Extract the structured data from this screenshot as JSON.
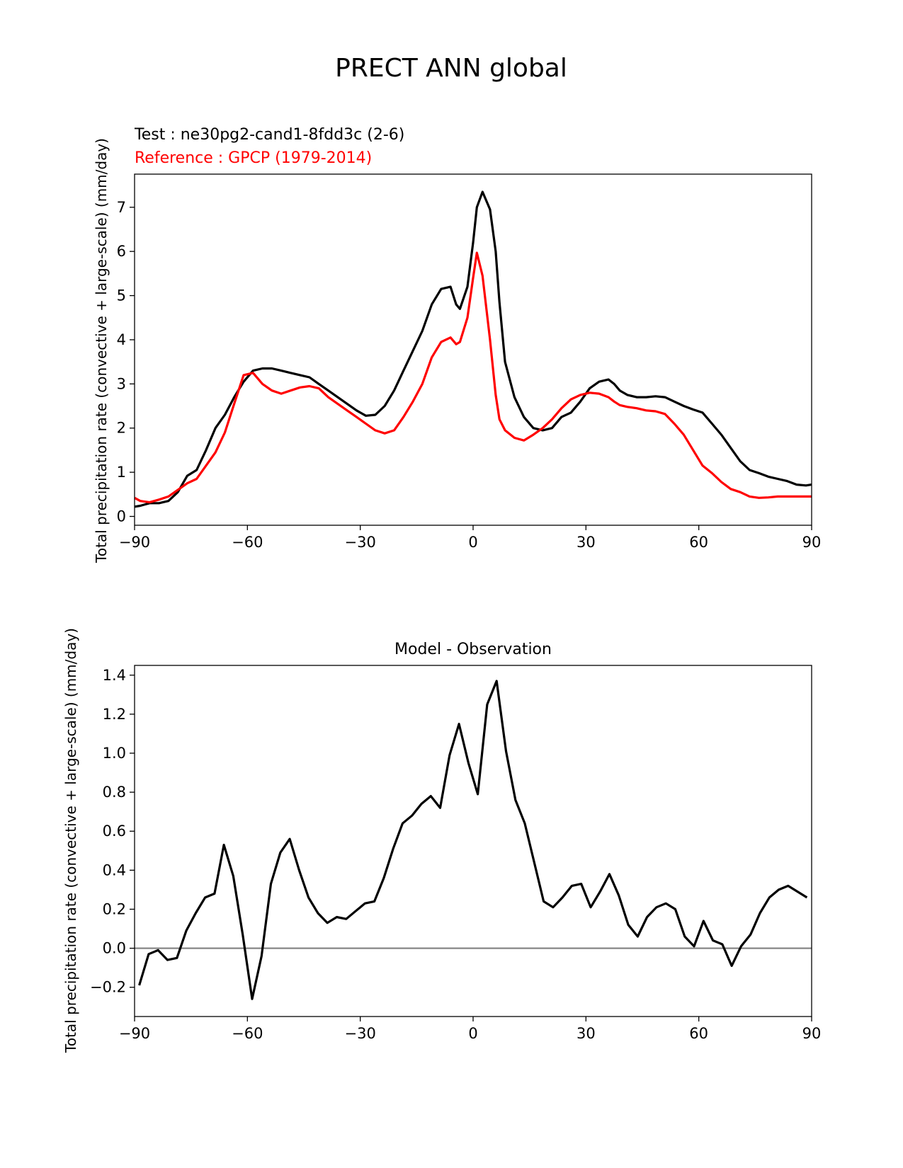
{
  "figure": {
    "title": "PRECT ANN global",
    "test_label": "Test : ne30pg2-cand1-8fdd3c (2-6)",
    "reference_label": "Reference : GPCP (1979-2014)"
  },
  "colors": {
    "test": "#000000",
    "reference": "#ff0000",
    "zero_line": "#808080",
    "axes": "#000000"
  },
  "chart_data": [
    {
      "type": "line",
      "ylabel": "Total precipitation rate (convective + large-scale) (mm/day)",
      "xlim": [
        -90,
        90
      ],
      "ylim": [
        -0.2,
        7.75
      ],
      "xticks": [
        -90,
        -60,
        -30,
        0,
        30,
        60,
        90
      ],
      "xtick_labels": [
        "−90",
        "−60",
        "−30",
        "0",
        "30",
        "60",
        "90"
      ],
      "yticks": [
        0,
        1,
        2,
        3,
        4,
        5,
        6,
        7
      ],
      "ytick_labels": [
        "0",
        "1",
        "2",
        "3",
        "4",
        "5",
        "6",
        "7"
      ],
      "grid": false,
      "series": [
        {
          "name": "Test : ne30pg2-cand1-8fdd3c (2-6)",
          "color": "#000000",
          "x": [
            -90,
            -88.5,
            -86,
            -83.5,
            -81,
            -78.5,
            -76,
            -73.5,
            -71,
            -68.5,
            -66,
            -63.5,
            -61,
            -58.5,
            -56,
            -53.5,
            -51,
            -48.5,
            -46,
            -43.5,
            -41,
            -38.5,
            -36,
            -33.5,
            -31,
            -28.5,
            -26,
            -23.5,
            -21,
            -18.5,
            -16,
            -13.5,
            -11,
            -8.5,
            -6,
            -4.5,
            -3.5,
            -1.5,
            0,
            1,
            2.5,
            4.5,
            6,
            7,
            8.5,
            11,
            13.5,
            16,
            18.5,
            21,
            23.5,
            26,
            28.5,
            31,
            33.5,
            36,
            37.5,
            39,
            41,
            43.5,
            46,
            48.5,
            51,
            53.5,
            56,
            58.5,
            61,
            63.5,
            66,
            68.5,
            71,
            73.5,
            76,
            78.5,
            81,
            83.5,
            86,
            88.5,
            90
          ],
          "y": [
            0.22,
            0.24,
            0.3,
            0.3,
            0.35,
            0.55,
            0.92,
            1.05,
            1.5,
            2.0,
            2.3,
            2.7,
            3.05,
            3.3,
            3.35,
            3.35,
            3.3,
            3.25,
            3.2,
            3.15,
            3.0,
            2.85,
            2.7,
            2.55,
            2.4,
            2.28,
            2.3,
            2.5,
            2.85,
            3.3,
            3.75,
            4.2,
            4.8,
            5.15,
            5.2,
            4.8,
            4.7,
            5.2,
            6.2,
            7.0,
            7.35,
            6.95,
            6.0,
            4.85,
            3.5,
            2.7,
            2.25,
            2.0,
            1.95,
            2.0,
            2.25,
            2.35,
            2.6,
            2.9,
            3.05,
            3.1,
            3.0,
            2.85,
            2.75,
            2.7,
            2.7,
            2.72,
            2.7,
            2.6,
            2.5,
            2.42,
            2.35,
            2.1,
            1.85,
            1.55,
            1.25,
            1.05,
            0.98,
            0.9,
            0.85,
            0.8,
            0.72,
            0.7,
            0.72
          ]
        },
        {
          "name": "Reference : GPCP (1979-2014)",
          "color": "#ff0000",
          "x": [
            -90,
            -88.5,
            -86,
            -83.5,
            -81,
            -78.5,
            -76,
            -73.5,
            -71,
            -68.5,
            -66,
            -63.5,
            -61,
            -58.5,
            -56,
            -53.5,
            -51,
            -48.5,
            -46,
            -43.5,
            -41,
            -38.5,
            -36,
            -33.5,
            -31,
            -28.5,
            -26,
            -23.5,
            -21,
            -18.5,
            -16,
            -13.5,
            -11,
            -8.5,
            -6,
            -4.5,
            -3.5,
            -1.5,
            0,
            1,
            2.5,
            4.5,
            6,
            7,
            8.5,
            11,
            13.5,
            16,
            18.5,
            21,
            23.5,
            26,
            28.5,
            31,
            33.5,
            36,
            37.5,
            39,
            41,
            43.5,
            46,
            48.5,
            51,
            53.5,
            56,
            58.5,
            61,
            63.5,
            66,
            68.5,
            71,
            73.5,
            76,
            78.5,
            81,
            83.5,
            86,
            88.5,
            90
          ],
          "y": [
            0.42,
            0.35,
            0.32,
            0.38,
            0.45,
            0.6,
            0.75,
            0.85,
            1.15,
            1.45,
            1.9,
            2.55,
            3.2,
            3.25,
            3.0,
            2.85,
            2.78,
            2.85,
            2.92,
            2.95,
            2.9,
            2.7,
            2.55,
            2.4,
            2.25,
            2.1,
            1.95,
            1.88,
            1.95,
            2.25,
            2.6,
            3.0,
            3.6,
            3.95,
            4.05,
            3.9,
            3.95,
            4.5,
            5.4,
            5.97,
            5.45,
            4.0,
            2.75,
            2.2,
            1.95,
            1.78,
            1.72,
            1.85,
            2.0,
            2.2,
            2.45,
            2.65,
            2.75,
            2.8,
            2.78,
            2.7,
            2.6,
            2.52,
            2.48,
            2.45,
            2.4,
            2.38,
            2.32,
            2.1,
            1.85,
            1.5,
            1.15,
            0.98,
            0.78,
            0.62,
            0.55,
            0.45,
            0.42,
            0.43,
            0.45,
            0.45,
            0.45,
            0.45,
            0.45
          ]
        }
      ]
    },
    {
      "type": "line",
      "title": "Model - Observation",
      "ylabel": "Total precipitation rate (convective + large-scale) (mm/day)",
      "xlim": [
        -90,
        90
      ],
      "ylim": [
        -0.35,
        1.45
      ],
      "xticks": [
        -90,
        -60,
        -30,
        0,
        30,
        60,
        90
      ],
      "xtick_labels": [
        "−90",
        "−60",
        "−30",
        "0",
        "30",
        "60",
        "90"
      ],
      "yticks": [
        -0.2,
        0.0,
        0.2,
        0.4,
        0.6,
        0.8,
        1.0,
        1.2,
        1.4
      ],
      "ytick_labels": [
        "−0.2",
        "0.0",
        "0.2",
        "0.4",
        "0.6",
        "0.8",
        "1.0",
        "1.2",
        "1.4"
      ],
      "grid": false,
      "reference_line": 0,
      "series": [
        {
          "color": "#000000",
          "x": [
            -88.75,
            -86.25,
            -83.75,
            -81.25,
            -78.75,
            -76.25,
            -73.75,
            -71.25,
            -68.75,
            -66.25,
            -63.75,
            -61.25,
            -58.75,
            -56.25,
            -53.75,
            -51.25,
            -48.75,
            -46.25,
            -43.75,
            -41.25,
            -38.75,
            -36.25,
            -33.75,
            -31.25,
            -28.75,
            -26.25,
            -23.75,
            -21.25,
            -18.75,
            -16.25,
            -13.75,
            -11.25,
            -8.75,
            -6.25,
            -3.75,
            -1.25,
            1.25,
            3.75,
            6.25,
            8.75,
            11.25,
            13.75,
            16.25,
            18.75,
            21.25,
            23.75,
            26.25,
            28.75,
            31.25,
            33.75,
            36.25,
            38.75,
            41.25,
            43.75,
            46.25,
            48.75,
            51.25,
            53.75,
            56.25,
            58.75,
            61.25,
            63.75,
            66.25,
            68.75,
            71.25,
            73.75,
            76.25,
            78.75,
            81.25,
            83.75,
            86.25,
            88.75
          ],
          "y": [
            -0.19,
            -0.03,
            -0.01,
            -0.06,
            -0.05,
            0.09,
            0.18,
            0.26,
            0.28,
            0.53,
            0.37,
            0.07,
            -0.26,
            -0.04,
            0.33,
            0.49,
            0.56,
            0.4,
            0.26,
            0.18,
            0.13,
            0.16,
            0.15,
            0.19,
            0.23,
            0.24,
            0.36,
            0.51,
            0.64,
            0.68,
            0.74,
            0.78,
            0.72,
            0.99,
            1.15,
            0.95,
            0.79,
            1.25,
            1.37,
            1.01,
            0.76,
            0.64,
            0.44,
            0.24,
            0.21,
            0.26,
            0.32,
            0.33,
            0.21,
            0.29,
            0.38,
            0.27,
            0.12,
            0.06,
            0.16,
            0.21,
            0.23,
            0.2,
            0.06,
            0.01,
            0.14,
            0.04,
            0.02,
            -0.09,
            0.01,
            0.07,
            0.18,
            0.26,
            0.3,
            0.32,
            0.29,
            0.26
          ]
        }
      ]
    }
  ]
}
